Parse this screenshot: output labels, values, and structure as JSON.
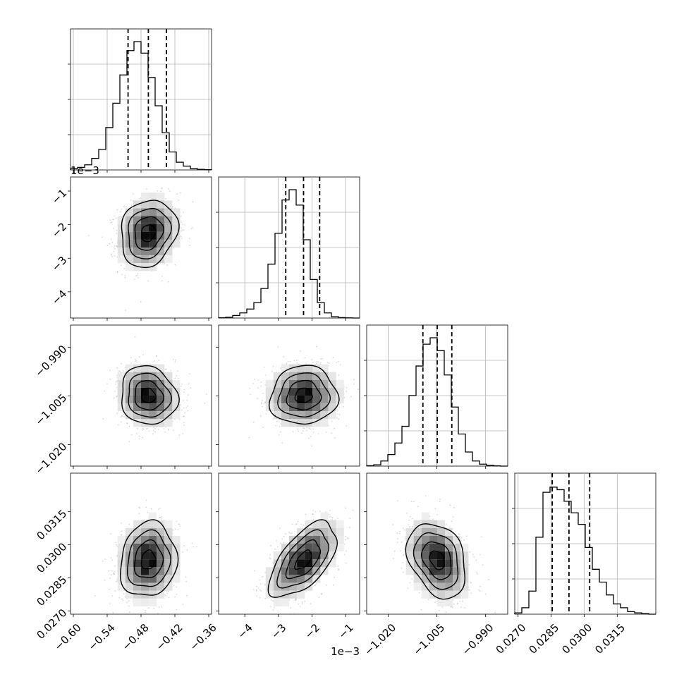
{
  "chart_data": {
    "type": "corner",
    "parameters": [
      {
        "range": [
          -0.605,
          -0.355
        ],
        "ticks": [
          -0.6,
          -0.54,
          -0.48,
          -0.42,
          -0.36
        ],
        "tick_labels": [
          "−0.60",
          "−0.54",
          "−0.48",
          "−0.42",
          "−0.36"
        ],
        "quantiles": [
          -0.503,
          -0.467,
          -0.435
        ],
        "median": -0.467,
        "std": 0.025,
        "offset_label": ""
      },
      {
        "range": [
          -4.78,
          -0.58
        ],
        "ticks": [
          -4,
          -3,
          -2,
          -1
        ],
        "tick_labels": [
          "−4",
          "−3",
          "−2",
          "−1"
        ],
        "quantiles": [
          -2.78,
          -2.25,
          -1.77
        ],
        "median": -2.25,
        "std": 0.5,
        "offset_label": "1e−3"
      },
      {
        "range": [
          -1.0266,
          -0.9832
        ],
        "ticks": [
          -1.02,
          -1.005,
          -0.99
        ],
        "tick_labels": [
          "−1.020",
          "−1.005",
          "−0.990"
        ],
        "quantiles": [
          -1.0093,
          -1.0049,
          -1.0004
        ],
        "median": -1.0049,
        "std": 0.0045,
        "offset_label": ""
      },
      {
        "range": [
          0.02685,
          0.03325
        ],
        "ticks": [
          0.027,
          0.0285,
          0.03,
          0.0315
        ],
        "tick_labels": [
          "0.0270",
          "0.0285",
          "0.0300",
          "0.0315"
        ],
        "quantiles": [
          0.02855,
          0.02931,
          0.03025
        ],
        "median": 0.02931,
        "std": 0.00085,
        "offset_label": ""
      }
    ],
    "histograms": [
      {
        "counts": [
          0.01,
          0.02,
          0.04,
          0.09,
          0.16,
          0.33,
          0.52,
          0.74,
          0.93,
          1.0,
          0.91,
          0.72,
          0.5,
          0.29,
          0.14,
          0.06,
          0.03,
          0.01,
          0.005,
          0.002
        ]
      },
      {
        "counts": [
          0.002,
          0.006,
          0.02,
          0.04,
          0.07,
          0.12,
          0.23,
          0.42,
          0.66,
          0.92,
          1.0,
          0.88,
          0.61,
          0.3,
          0.12,
          0.04,
          0.01,
          0.003,
          0.001,
          0.0
        ]
      },
      {
        "counts": [
          0.003,
          0.01,
          0.04,
          0.09,
          0.18,
          0.31,
          0.55,
          0.78,
          0.95,
          1.0,
          0.9,
          0.71,
          0.46,
          0.25,
          0.11,
          0.04,
          0.015,
          0.006,
          0.002,
          0.0
        ]
      },
      {
        "counts": [
          0.01,
          0.05,
          0.18,
          0.6,
          0.95,
          0.99,
          0.97,
          0.88,
          0.79,
          0.7,
          0.52,
          0.35,
          0.25,
          0.15,
          0.08,
          0.05,
          0.02,
          0.01,
          0.005,
          0.0
        ]
      }
    ],
    "correlations": [
      [
        1.0,
        0.15,
        -0.1,
        0.1
      ],
      [
        0.15,
        1.0,
        0.05,
        0.6
      ],
      [
        -0.1,
        0.05,
        1.0,
        -0.3
      ],
      [
        0.1,
        0.6,
        -0.3,
        1.0
      ]
    ],
    "contour_levels_sigma": [
      0.5,
      1.0,
      1.5,
      2.0
    ],
    "grid": true
  }
}
